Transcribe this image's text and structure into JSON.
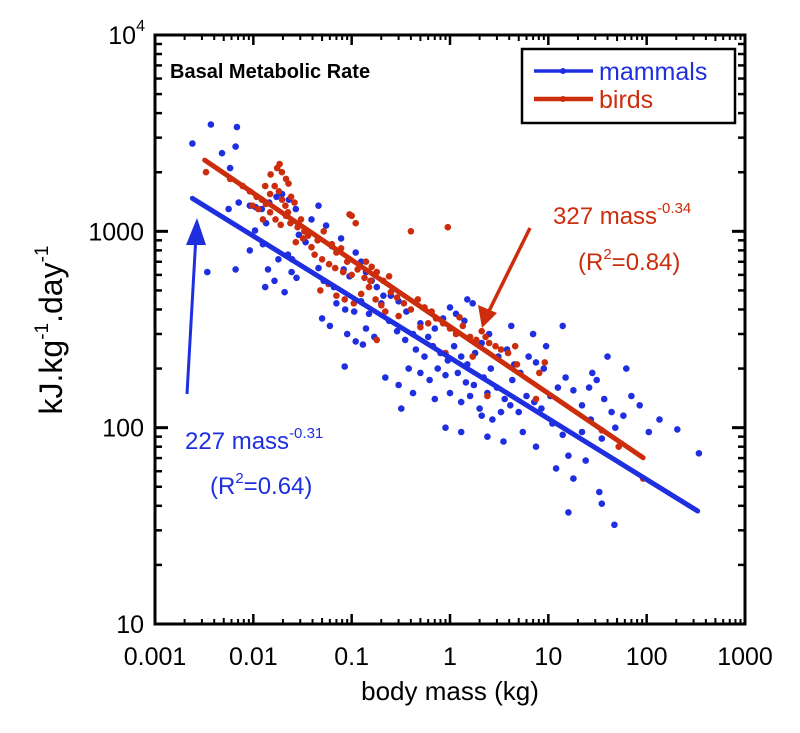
{
  "chart_data": {
    "type": "scatter",
    "title": "Basal Metabolic Rate",
    "xlabel": "body mass (kg)",
    "ylabel": {
      "base": "kJ.kg",
      "exp1": "-1",
      "mid": ".day",
      "exp2": "-1"
    },
    "xscale": "log",
    "yscale": "log",
    "xlim": [
      0.001,
      1000
    ],
    "ylim": [
      10,
      10000
    ],
    "grid": false,
    "legend_position": "top-right",
    "x_ticks": [
      {
        "value": 0.001,
        "label": "0.001"
      },
      {
        "value": 0.01,
        "label": "0.01"
      },
      {
        "value": 0.1,
        "label": "0.1"
      },
      {
        "value": 1,
        "label": "1"
      },
      {
        "value": 10,
        "label": "10"
      },
      {
        "value": 100,
        "label": "100"
      },
      {
        "value": 1000,
        "label": "1000"
      }
    ],
    "y_ticks": [
      {
        "value": 10,
        "label": "10",
        "exp": ""
      },
      {
        "value": 100,
        "label": "100",
        "exp": ""
      },
      {
        "value": 1000,
        "label": "1000",
        "exp": ""
      },
      {
        "value": 10000,
        "label": "10",
        "exp": "4"
      }
    ],
    "series": [
      {
        "name": "mammals",
        "color": "#1f2fe0",
        "fit": {
          "coef": 227,
          "exponent": -0.31,
          "x_range": [
            0.0024,
            330
          ],
          "r2": 0.64
        },
        "points": [
          [
            0.0024,
            2800
          ],
          [
            0.0037,
            3500
          ],
          [
            0.0068,
            3400
          ],
          [
            0.0066,
            2700
          ],
          [
            0.0048,
            2500
          ],
          [
            0.0058,
            2100
          ],
          [
            0.0034,
            620
          ],
          [
            0.0056,
            1300
          ],
          [
            0.0071,
            1400
          ],
          [
            0.0092,
            1350
          ],
          [
            0.0105,
            1330
          ],
          [
            0.0122,
            1300
          ],
          [
            0.0145,
            1400
          ],
          [
            0.0172,
            1500
          ],
          [
            0.0196,
            1550
          ],
          [
            0.023,
            1450
          ],
          [
            0.027,
            1300
          ],
          [
            0.0135,
            1100
          ],
          [
            0.0104,
            1010
          ],
          [
            0.0125,
            860
          ],
          [
            0.0092,
            800
          ],
          [
            0.0066,
            640
          ],
          [
            0.0141,
            640
          ],
          [
            0.018,
            720
          ],
          [
            0.0225,
            760
          ],
          [
            0.0248,
            720
          ],
          [
            0.029,
            960
          ],
          [
            0.034,
            880
          ],
          [
            0.0164,
            560
          ],
          [
            0.0132,
            520
          ],
          [
            0.0208,
            490
          ],
          [
            0.0245,
            620
          ],
          [
            0.0275,
            580
          ],
          [
            0.039,
            1150
          ],
          [
            0.046,
            1350
          ],
          [
            0.055,
            1070
          ],
          [
            0.063,
            840
          ],
          [
            0.078,
            920
          ],
          [
            0.046,
            650
          ],
          [
            0.052,
            560
          ],
          [
            0.066,
            520
          ],
          [
            0.083,
            640
          ],
          [
            0.095,
            590
          ],
          [
            0.11,
            780
          ],
          [
            0.125,
            700
          ],
          [
            0.14,
            620
          ],
          [
            0.16,
            560
          ],
          [
            0.18,
            520
          ],
          [
            0.21,
            470
          ],
          [
            0.07,
            430
          ],
          [
            0.086,
            400
          ],
          [
            0.106,
            390
          ],
          [
            0.125,
            440
          ],
          [
            0.15,
            380
          ],
          [
            0.2,
            430
          ],
          [
            0.25,
            470
          ],
          [
            0.3,
            440
          ],
          [
            0.36,
            390
          ],
          [
            0.05,
            360
          ],
          [
            0.06,
            330
          ],
          [
            0.09,
            300
          ],
          [
            0.11,
            275
          ],
          [
            0.14,
            320
          ],
          [
            0.17,
            290
          ],
          [
            0.24,
            350
          ],
          [
            0.29,
            310
          ],
          [
            0.35,
            280
          ],
          [
            0.42,
            300
          ],
          [
            0.5,
            340
          ],
          [
            0.6,
            290
          ],
          [
            0.7,
            320
          ],
          [
            0.85,
            360
          ],
          [
            1.0,
            410
          ],
          [
            1.15,
            380
          ],
          [
            1.4,
            350
          ],
          [
            1.7,
            430
          ],
          [
            0.45,
            250
          ],
          [
            0.55,
            230
          ],
          [
            0.67,
            260
          ],
          [
            0.8,
            240
          ],
          [
            0.95,
            220
          ],
          [
            1.1,
            260
          ],
          [
            1.3,
            230
          ],
          [
            1.5,
            210
          ],
          [
            1.8,
            240
          ],
          [
            2.1,
            270
          ],
          [
            2.5,
            300
          ],
          [
            0.38,
            200
          ],
          [
            0.5,
            190
          ],
          [
            0.62,
            175
          ],
          [
            0.75,
            200
          ],
          [
            0.9,
            185
          ],
          [
            1.2,
            190
          ],
          [
            1.45,
            170
          ],
          [
            1.75,
            165
          ],
          [
            2.2,
            180
          ],
          [
            2.6,
            200
          ],
          [
            3.1,
            230
          ],
          [
            3.8,
            250
          ],
          [
            4.5,
            210
          ],
          [
            0.3,
            165
          ],
          [
            0.42,
            150
          ],
          [
            0.7,
            140
          ],
          [
            1.0,
            150
          ],
          [
            1.3,
            135
          ],
          [
            1.6,
            145
          ],
          [
            2.0,
            125
          ],
          [
            2.4,
            150
          ],
          [
            3.0,
            160
          ],
          [
            3.6,
            140
          ],
          [
            4.3,
            175
          ],
          [
            5.2,
            190
          ],
          [
            6.3,
            230
          ],
          [
            7.5,
            215
          ],
          [
            9.0,
            200
          ],
          [
            2.1,
            115
          ],
          [
            2.7,
            110
          ],
          [
            3.3,
            120
          ],
          [
            4.1,
            130
          ],
          [
            5.0,
            120
          ],
          [
            6.0,
            145
          ],
          [
            7.2,
            135
          ],
          [
            8.5,
            125
          ],
          [
            10.5,
            145
          ],
          [
            12.5,
            160
          ],
          [
            15,
            180
          ],
          [
            18,
            155
          ],
          [
            22,
            130
          ],
          [
            26,
            160
          ],
          [
            31,
            175
          ],
          [
            37,
            140
          ],
          [
            44,
            120
          ],
          [
            0.9,
            100
          ],
          [
            1.3,
            95
          ],
          [
            2.4,
            90
          ],
          [
            3.5,
            85
          ],
          [
            5.5,
            95
          ],
          [
            7.5,
            80
          ],
          [
            11,
            105
          ],
          [
            14,
            92
          ],
          [
            16,
            72
          ],
          [
            22,
            95
          ],
          [
            27,
            110
          ],
          [
            35,
            88
          ],
          [
            48,
            100
          ],
          [
            58,
            115
          ],
          [
            70,
            145
          ],
          [
            85,
            130
          ],
          [
            105,
            95
          ],
          [
            135,
            110
          ],
          [
            205,
            98
          ],
          [
            340,
            74
          ],
          [
            12,
            62
          ],
          [
            18,
            55
          ],
          [
            24,
            68
          ],
          [
            33,
            47
          ],
          [
            35,
            41
          ],
          [
            47,
            32
          ],
          [
            16,
            37
          ],
          [
            62,
            200
          ],
          [
            40,
            230
          ],
          [
            7,
            300
          ],
          [
            4.2,
            330
          ],
          [
            2.2,
            380
          ],
          [
            1.5,
            450
          ],
          [
            9.5,
            260
          ],
          [
            14,
            330
          ],
          [
            28,
            190
          ],
          [
            0.22,
            180
          ],
          [
            0.32,
            125
          ],
          [
            0.13,
            265
          ],
          [
            0.085,
            205
          ]
        ]
      },
      {
        "name": "birds",
        "color": "#cc2d0c",
        "fit": {
          "coef": 327,
          "exponent": -0.34,
          "x_range": [
            0.0032,
            92
          ],
          "r2": 0.84
        },
        "points": [
          [
            0.0033,
            2000
          ],
          [
            0.0058,
            1850
          ],
          [
            0.0078,
            1700
          ],
          [
            0.0092,
            1600
          ],
          [
            0.0108,
            1500
          ],
          [
            0.0122,
            1450
          ],
          [
            0.0098,
            1350
          ],
          [
            0.0112,
            1300
          ],
          [
            0.0134,
            1380
          ],
          [
            0.0148,
            1550
          ],
          [
            0.0165,
            1700
          ],
          [
            0.0182,
            1600
          ],
          [
            0.0196,
            1450
          ],
          [
            0.0212,
            1350
          ],
          [
            0.0225,
            1250
          ],
          [
            0.0242,
            1500
          ],
          [
            0.0262,
            1400
          ],
          [
            0.0148,
            1250
          ],
          [
            0.0125,
            1150
          ],
          [
            0.0168,
            1150
          ],
          [
            0.019,
            1080
          ],
          [
            0.0215,
            1200
          ],
          [
            0.0238,
            1100
          ],
          [
            0.0282,
            1050
          ],
          [
            0.0305,
            1150
          ],
          [
            0.033,
            1000
          ],
          [
            0.036,
            950
          ],
          [
            0.0175,
            2100
          ],
          [
            0.0185,
            2200
          ],
          [
            0.0195,
            2000
          ],
          [
            0.0215,
            1850
          ],
          [
            0.0228,
            1750
          ],
          [
            0.015,
            1950
          ],
          [
            0.0132,
            1700
          ],
          [
            0.027,
            880
          ],
          [
            0.032,
            920
          ],
          [
            0.039,
            830
          ],
          [
            0.045,
            900
          ],
          [
            0.052,
            1000
          ],
          [
            0.063,
            860
          ],
          [
            0.07,
            780
          ],
          [
            0.078,
            820
          ],
          [
            0.09,
            700
          ],
          [
            0.1,
            1200
          ],
          [
            0.11,
            1100
          ],
          [
            0.095,
            1220
          ],
          [
            0.042,
            760
          ],
          [
            0.05,
            720
          ],
          [
            0.059,
            680
          ],
          [
            0.068,
            650
          ],
          [
            0.082,
            620
          ],
          [
            0.1,
            600
          ],
          [
            0.115,
            640
          ],
          [
            0.135,
            580
          ],
          [
            0.155,
            560
          ],
          [
            0.18,
            620
          ],
          [
            0.21,
            560
          ],
          [
            0.24,
            590
          ],
          [
            0.14,
            700
          ],
          [
            0.16,
            660
          ],
          [
            0.048,
            500
          ],
          [
            0.058,
            540
          ],
          [
            0.07,
            470
          ],
          [
            0.085,
            450
          ],
          [
            0.105,
            430
          ],
          [
            0.125,
            480
          ],
          [
            0.15,
            520
          ],
          [
            0.175,
            450
          ],
          [
            0.2,
            420
          ],
          [
            0.25,
            490
          ],
          [
            0.29,
            460
          ],
          [
            0.34,
            430
          ],
          [
            0.4,
            400
          ],
          [
            0.47,
            450
          ],
          [
            0.55,
            410
          ],
          [
            0.65,
            390
          ],
          [
            0.4,
            1000
          ],
          [
            0.95,
            1050
          ],
          [
            0.72,
            360
          ],
          [
            0.85,
            340
          ],
          [
            1.0,
            320
          ],
          [
            1.15,
            300
          ],
          [
            1.35,
            330
          ],
          [
            1.6,
            290
          ],
          [
            1.85,
            280
          ],
          [
            2.1,
            310
          ],
          [
            2.5,
            270
          ],
          [
            2.9,
            260
          ],
          [
            3.3,
            250
          ],
          [
            3.9,
            240
          ],
          [
            4.6,
            260
          ],
          [
            0.6,
            340
          ],
          [
            0.3,
            370
          ],
          [
            0.22,
            390
          ],
          [
            0.5,
            325
          ],
          [
            1.25,
            365
          ],
          [
            1.7,
            230
          ],
          [
            2.3,
            290
          ],
          [
            4.8,
            210
          ],
          [
            8.1,
            190
          ],
          [
            9.2,
            215
          ],
          [
            2.4,
            145
          ],
          [
            7.5,
            140
          ],
          [
            35,
            97
          ],
          [
            52,
            80
          ],
          [
            92,
            55
          ],
          [
            0.9,
            240
          ],
          [
            0.18,
            280
          ]
        ]
      }
    ],
    "annotations": [
      {
        "series": "birds",
        "text": "327 mass",
        "exp": "-0.34",
        "r2_text": "(R",
        "r2_sup": "2",
        "r2_value": "=0.84)"
      },
      {
        "series": "mammals",
        "text": "227 mass",
        "exp": "-0.31",
        "r2_text": "(R",
        "r2_sup": "2",
        "r2_value": "=0.64)"
      }
    ]
  }
}
